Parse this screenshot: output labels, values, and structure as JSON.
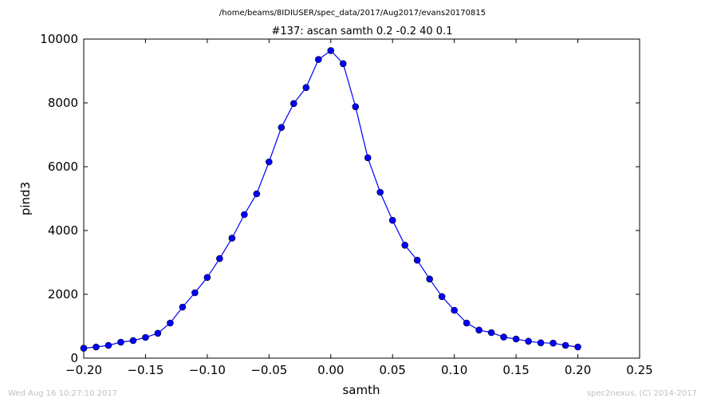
{
  "header": {
    "path": "/home/beams/8IDIUSER/spec_data/2017/Aug2017/evans20170815",
    "scan_title": "#137: ascan  samth 0.2 -0.2  40 0.1"
  },
  "footer": {
    "timestamp": "Wed Aug 16 10:27:10 2017",
    "credit": "spec2nexus, (C) 2014-2017"
  },
  "chart_data": {
    "type": "line",
    "title": "#137: ascan  samth 0.2 -0.2  40 0.1",
    "xlabel": "samth",
    "ylabel": "pind3",
    "xlim": [
      -0.2,
      0.25
    ],
    "ylim": [
      0,
      10000
    ],
    "xticks": [
      "−0.20",
      "−0.15",
      "−0.10",
      "−0.05",
      "0.00",
      "0.05",
      "0.10",
      "0.15",
      "0.20",
      "0.25"
    ],
    "xtick_values": [
      -0.2,
      -0.15,
      -0.1,
      -0.05,
      0.0,
      0.05,
      0.1,
      0.15,
      0.2,
      0.25
    ],
    "yticks": [
      "0",
      "2000",
      "4000",
      "6000",
      "8000",
      "10000"
    ],
    "ytick_values": [
      0,
      2000,
      4000,
      6000,
      8000,
      10000
    ],
    "grid": false,
    "color": "#0000ff",
    "x": [
      -0.2,
      -0.19,
      -0.18,
      -0.17,
      -0.16,
      -0.15,
      -0.14,
      -0.13,
      -0.12,
      -0.11,
      -0.1,
      -0.09,
      -0.08,
      -0.07,
      -0.06,
      -0.05,
      -0.04,
      -0.03,
      -0.02,
      -0.01,
      0.0,
      0.01,
      0.02,
      0.03,
      0.04,
      0.05,
      0.06,
      0.07,
      0.08,
      0.09,
      0.1,
      0.11,
      0.12,
      0.13,
      0.14,
      0.15,
      0.16,
      0.17,
      0.18,
      0.19,
      0.2
    ],
    "y": [
      310,
      350,
      400,
      500,
      550,
      650,
      780,
      1100,
      1600,
      2050,
      2530,
      3120,
      3760,
      4500,
      5150,
      6150,
      7230,
      7980,
      8480,
      9360,
      9640,
      9230,
      7880,
      6280,
      5200,
      4320,
      3540,
      3070,
      2480,
      1930,
      1500,
      1100,
      880,
      800,
      660,
      600,
      530,
      480,
      470,
      400,
      350
    ]
  }
}
